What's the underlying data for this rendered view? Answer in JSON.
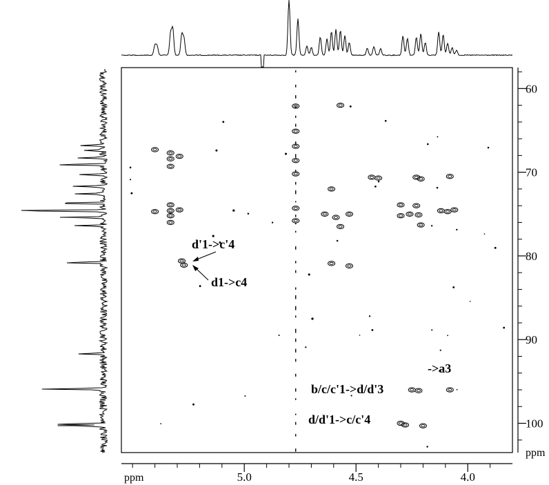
{
  "chart_data": {
    "type": "heatmap",
    "title": "",
    "x_axis": {
      "label": "ppm",
      "range": [
        5.55,
        3.8
      ],
      "ticks": [
        5.0,
        4.5,
        4.0
      ],
      "tick_labels": [
        "5.0",
        "4.5",
        "4.0"
      ]
    },
    "y_axis": {
      "label": "ppm",
      "range": [
        57.5,
        103.5
      ],
      "ticks": [
        60,
        70,
        80,
        90,
        100
      ],
      "tick_labels": [
        "60",
        "70",
        "80",
        "90",
        "100"
      ]
    },
    "annotations": [
      {
        "text": "d'1->c'4",
        "points_to": [
          5.28,
          80.6
        ]
      },
      {
        "text": "d1->c4",
        "points_to": [
          5.27,
          81.1
        ]
      },
      {
        "text": "->a3",
        "points_to": [
          4.08,
          96.0
        ]
      },
      {
        "text": "b/c/c'1->d/d'3",
        "points_to": [
          4.28,
          96.0
        ]
      },
      {
        "text": "d/d'1->c/c'4",
        "points_to": [
          4.28,
          100.1
        ]
      }
    ],
    "cross_peaks": [
      {
        "x": 5.4,
        "y": 67.3
      },
      {
        "x": 5.4,
        "y": 74.7
      },
      {
        "x": 5.33,
        "y": 67.7
      },
      {
        "x": 5.33,
        "y": 68.4
      },
      {
        "x": 5.33,
        "y": 69.3
      },
      {
        "x": 5.33,
        "y": 73.9
      },
      {
        "x": 5.33,
        "y": 74.6
      },
      {
        "x": 5.33,
        "y": 75.2
      },
      {
        "x": 5.33,
        "y": 76.0
      },
      {
        "x": 5.29,
        "y": 68.1
      },
      {
        "x": 5.29,
        "y": 74.5
      },
      {
        "x": 5.28,
        "y": 80.6
      },
      {
        "x": 5.27,
        "y": 81.1
      },
      {
        "x": 4.77,
        "y": 62.1
      },
      {
        "x": 4.77,
        "y": 65.1
      },
      {
        "x": 4.77,
        "y": 66.9
      },
      {
        "x": 4.77,
        "y": 68.6
      },
      {
        "x": 4.77,
        "y": 70.2
      },
      {
        "x": 4.77,
        "y": 74.3
      },
      {
        "x": 4.77,
        "y": 75.8
      },
      {
        "x": 4.64,
        "y": 75.0
      },
      {
        "x": 4.61,
        "y": 72.0
      },
      {
        "x": 4.59,
        "y": 75.4
      },
      {
        "x": 4.57,
        "y": 76.5
      },
      {
        "x": 4.53,
        "y": 75.0
      },
      {
        "x": 4.57,
        "y": 62.0
      },
      {
        "x": 4.61,
        "y": 80.9
      },
      {
        "x": 4.53,
        "y": 81.2
      },
      {
        "x": 4.43,
        "y": 70.6
      },
      {
        "x": 4.4,
        "y": 70.7
      },
      {
        "x": 4.3,
        "y": 73.9
      },
      {
        "x": 4.3,
        "y": 75.2
      },
      {
        "x": 4.26,
        "y": 75.0
      },
      {
        "x": 4.23,
        "y": 70.6
      },
      {
        "x": 4.21,
        "y": 70.8
      },
      {
        "x": 4.23,
        "y": 74.0
      },
      {
        "x": 4.22,
        "y": 75.1
      },
      {
        "x": 4.21,
        "y": 76.3
      },
      {
        "x": 4.12,
        "y": 74.6
      },
      {
        "x": 4.09,
        "y": 74.7
      },
      {
        "x": 4.06,
        "y": 74.5
      },
      {
        "x": 4.08,
        "y": 70.5
      },
      {
        "x": 4.25,
        "y": 96.0
      },
      {
        "x": 4.22,
        "y": 96.1
      },
      {
        "x": 4.08,
        "y": 96.0
      },
      {
        "x": 4.3,
        "y": 100.0
      },
      {
        "x": 4.28,
        "y": 100.2
      },
      {
        "x": 4.2,
        "y": 100.3
      }
    ],
    "proton_peaks": [
      {
        "x": 5.4,
        "h": 0.24
      },
      {
        "x": 5.39,
        "h": 0.22
      },
      {
        "x": 5.33,
        "h": 0.5
      },
      {
        "x": 5.32,
        "h": 0.62
      },
      {
        "x": 5.28,
        "h": 0.48
      },
      {
        "x": 5.27,
        "h": 0.4
      },
      {
        "x": 4.8,
        "h": 1.3
      },
      {
        "x": 4.76,
        "h": 0.85
      },
      {
        "x": 4.72,
        "h": 0.22
      },
      {
        "x": 4.7,
        "h": 0.18
      },
      {
        "x": 4.66,
        "h": 0.42
      },
      {
        "x": 4.63,
        "h": 0.38
      },
      {
        "x": 4.61,
        "h": 0.55
      },
      {
        "x": 4.59,
        "h": 0.6
      },
      {
        "x": 4.57,
        "h": 0.58
      },
      {
        "x": 4.55,
        "h": 0.45
      },
      {
        "x": 4.53,
        "h": 0.3
      },
      {
        "x": 4.45,
        "h": 0.16
      },
      {
        "x": 4.42,
        "h": 0.2
      },
      {
        "x": 4.39,
        "h": 0.15
      },
      {
        "x": 4.29,
        "h": 0.45
      },
      {
        "x": 4.27,
        "h": 0.4
      },
      {
        "x": 4.23,
        "h": 0.42
      },
      {
        "x": 4.21,
        "h": 0.5
      },
      {
        "x": 4.19,
        "h": 0.3
      },
      {
        "x": 4.13,
        "h": 0.55
      },
      {
        "x": 4.11,
        "h": 0.48
      },
      {
        "x": 4.09,
        "h": 0.28
      },
      {
        "x": 4.07,
        "h": 0.18
      },
      {
        "x": 4.05,
        "h": 0.12
      }
    ],
    "carbon_peaks": [
      {
        "y": 66.8,
        "h": 0.4
      },
      {
        "y": 67.4,
        "h": 0.3
      },
      {
        "y": 68.3,
        "h": 0.45
      },
      {
        "y": 69.1,
        "h": 0.75
      },
      {
        "y": 70.3,
        "h": 0.4
      },
      {
        "y": 71.7,
        "h": 0.55
      },
      {
        "y": 72.6,
        "h": 0.42
      },
      {
        "y": 73.7,
        "h": 0.8
      },
      {
        "y": 74.6,
        "h": 1.55
      },
      {
        "y": 75.4,
        "h": 0.7
      },
      {
        "y": 76.4,
        "h": 0.45
      },
      {
        "y": 80.8,
        "h": 0.6
      },
      {
        "y": 91.7,
        "h": 0.35
      },
      {
        "y": 95.9,
        "h": 0.95
      },
      {
        "y": 100.1,
        "h": 0.8
      },
      {
        "y": 100.3,
        "h": 0.7
      }
    ]
  }
}
